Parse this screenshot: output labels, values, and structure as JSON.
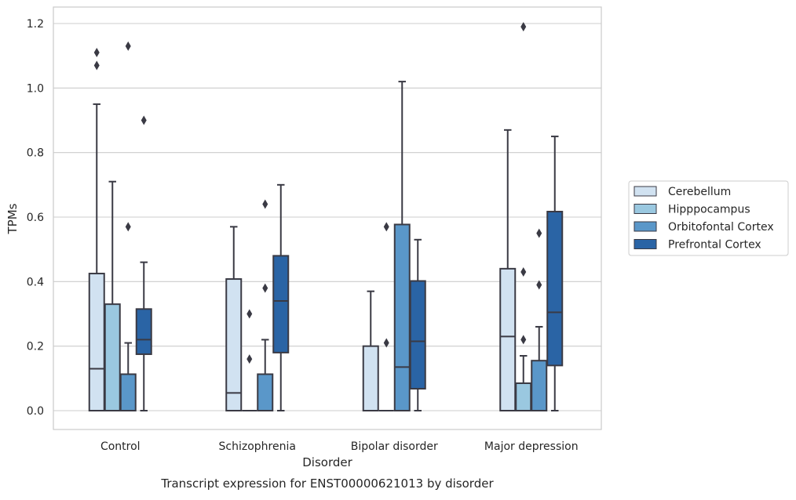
{
  "chart_data": {
    "type": "box",
    "title": "Transcript expression for ENST00000621013 by disorder",
    "xlabel": "Disorder",
    "ylabel": "TPMs",
    "categories": [
      "Control",
      "Schizophrenia",
      "Bipolar disorder",
      "Major depression"
    ],
    "ylim": [
      -0.06,
      1.25
    ],
    "yticks": [
      "0.0",
      "0.2",
      "0.4",
      "0.6",
      "0.8",
      "1.0",
      "1.2"
    ],
    "grid": "horizontal",
    "legend_position": "right",
    "series": [
      {
        "name": "Cerebellum",
        "color": "#d1e2f1",
        "boxes": [
          {
            "whislo": 0.0,
            "q1": 0.0,
            "med": 0.13,
            "q3": 0.425,
            "whishi": 0.95,
            "fliers": [
              1.07,
              1.11
            ]
          },
          {
            "whislo": 0.0,
            "q1": 0.0,
            "med": 0.055,
            "q3": 0.408,
            "whishi": 0.57,
            "fliers": []
          },
          {
            "whislo": 0.0,
            "q1": 0.0,
            "med": 0.0,
            "q3": 0.2,
            "whishi": 0.37,
            "fliers": []
          },
          {
            "whislo": 0.0,
            "q1": 0.0,
            "med": 0.23,
            "q3": 0.44,
            "whishi": 0.87,
            "fliers": []
          }
        ]
      },
      {
        "name": "Hipppocampus",
        "color": "#9ac8e0",
        "boxes": [
          {
            "whislo": 0.0,
            "q1": 0.0,
            "med": 0.0,
            "q3": 0.33,
            "whishi": 0.71,
            "fliers": []
          },
          {
            "whislo": 0.0,
            "q1": 0.0,
            "med": 0.0,
            "q3": 0.0,
            "whishi": 0.0,
            "fliers": [
              0.16,
              0.3
            ]
          },
          {
            "whislo": 0.0,
            "q1": 0.0,
            "med": 0.0,
            "q3": 0.0,
            "whishi": 0.0,
            "fliers": [
              0.21,
              0.57
            ]
          },
          {
            "whislo": 0.0,
            "q1": 0.0,
            "med": 0.0,
            "q3": 0.085,
            "whishi": 0.17,
            "fliers": [
              0.22,
              0.43,
              1.19
            ]
          }
        ]
      },
      {
        "name": "Orbitofontal Cortex",
        "color": "#5a97c9",
        "boxes": [
          {
            "whislo": 0.0,
            "q1": 0.0,
            "med": 0.0,
            "q3": 0.113,
            "whishi": 0.21,
            "fliers": [
              0.57,
              1.13
            ]
          },
          {
            "whislo": 0.0,
            "q1": 0.0,
            "med": 0.0,
            "q3": 0.113,
            "whishi": 0.22,
            "fliers": [
              0.38,
              0.64
            ]
          },
          {
            "whislo": 0.0,
            "q1": 0.0,
            "med": 0.135,
            "q3": 0.577,
            "whishi": 1.02,
            "fliers": []
          },
          {
            "whislo": 0.0,
            "q1": 0.0,
            "med": 0.0,
            "q3": 0.155,
            "whishi": 0.26,
            "fliers": [
              0.39,
              0.55
            ]
          }
        ]
      },
      {
        "name": "Prefrontal Cortex",
        "color": "#2a64a5",
        "boxes": [
          {
            "whislo": 0.0,
            "q1": 0.175,
            "med": 0.22,
            "q3": 0.315,
            "whishi": 0.46,
            "fliers": [
              0.9
            ]
          },
          {
            "whislo": 0.0,
            "q1": 0.18,
            "med": 0.34,
            "q3": 0.48,
            "whishi": 0.7,
            "fliers": []
          },
          {
            "whislo": 0.0,
            "q1": 0.068,
            "med": 0.215,
            "q3": 0.402,
            "whishi": 0.53,
            "fliers": []
          },
          {
            "whislo": 0.0,
            "q1": 0.14,
            "med": 0.305,
            "q3": 0.617,
            "whishi": 0.85,
            "fliers": []
          }
        ]
      }
    ]
  }
}
